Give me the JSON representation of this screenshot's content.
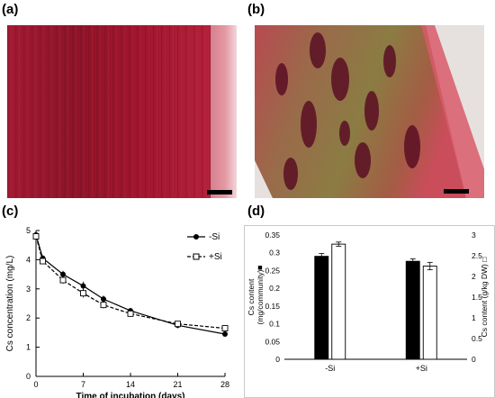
{
  "panels": {
    "a": "(a)",
    "b": "(b)",
    "c": "(c)",
    "d": "(d)"
  },
  "colors": {
    "stain_red": "#a5162f",
    "stain_dark": "#5e0f22",
    "tissue_olive": "#8f7a3a",
    "background_light": "#e7e1dd"
  },
  "chart_data": [
    {
      "type": "line",
      "title": "",
      "xlabel": "Time of incubation (days)",
      "ylabel": "Cs concentration (mg/L)",
      "xlim": [
        0,
        28
      ],
      "ylim": [
        0,
        5
      ],
      "xticks": [
        "0",
        "7",
        "14",
        "21",
        "28"
      ],
      "yticks": [
        "0",
        "1",
        "2",
        "3",
        "4",
        "5"
      ],
      "legend_position": "top-right",
      "series": [
        {
          "name": "-Si",
          "marker": "filled-circle",
          "line": "solid",
          "x": [
            0,
            1,
            4,
            7,
            10,
            14,
            21,
            28
          ],
          "y": [
            4.85,
            4.05,
            3.5,
            3.1,
            2.65,
            2.25,
            1.75,
            1.45
          ],
          "err": [
            0.1,
            0.1,
            0.12,
            0.15,
            0.12,
            0.1,
            0.1,
            0.05
          ]
        },
        {
          "name": "+Si",
          "marker": "open-square",
          "line": "dashed",
          "x": [
            0,
            1,
            4,
            7,
            10,
            14,
            21,
            28
          ],
          "y": [
            4.8,
            3.95,
            3.3,
            2.85,
            2.45,
            2.15,
            1.8,
            1.65
          ],
          "err": [
            0.1,
            0.1,
            0.12,
            0.15,
            0.12,
            0.1,
            0.1,
            0.05
          ]
        }
      ]
    },
    {
      "type": "bar",
      "title": "",
      "categories": [
        "-Si",
        "+Si"
      ],
      "ylabel_left": "Cs content\n(mg/community)",
      "ylabel_left_marker": "■",
      "ylabel_right": "Cs content (g/kg DW)",
      "ylabel_right_marker": "□",
      "ylim_left": [
        0,
        0.35
      ],
      "ylim_right": [
        0,
        3
      ],
      "yticks_left": [
        "0",
        "0.05",
        "0.1",
        "0.15",
        "0.2",
        "0.25",
        "0.3",
        "0.35"
      ],
      "yticks_right": [
        "0",
        "0.5",
        "1",
        "1.5",
        "2",
        "2.5",
        "3"
      ],
      "series": [
        {
          "name": "Cs content (mg/community)",
          "axis": "left",
          "fill": "#000000",
          "values": [
            0.29,
            0.276
          ],
          "err": [
            0.008,
            0.007
          ]
        },
        {
          "name": "Cs content (g/kg DW)",
          "axis": "right",
          "fill": "#ffffff",
          "values": [
            2.78,
            2.25
          ],
          "err": [
            0.05,
            0.09
          ]
        }
      ]
    }
  ]
}
